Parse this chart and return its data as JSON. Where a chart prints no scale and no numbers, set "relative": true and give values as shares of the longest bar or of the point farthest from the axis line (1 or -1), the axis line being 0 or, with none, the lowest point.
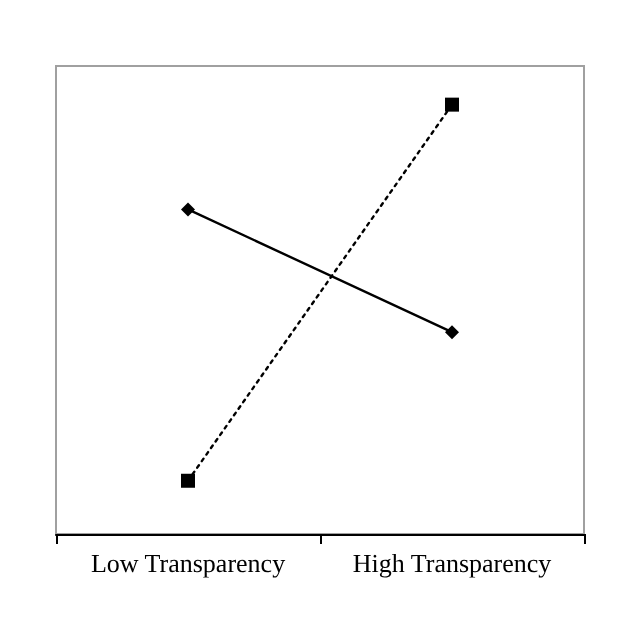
{
  "chart_data": {
    "type": "line",
    "relative": true,
    "categories": [
      "Low Transparency",
      "High Transparency"
    ],
    "series": [
      {
        "color": "#000000",
        "values": [
          0.756,
          0.47
        ],
        "marker": "diamond",
        "line_style": "solid"
      },
      {
        "color": "#000000",
        "values": [
          0.124,
          1
        ],
        "marker": "square",
        "line_style": "dotted"
      }
    ],
    "grid": false
  }
}
